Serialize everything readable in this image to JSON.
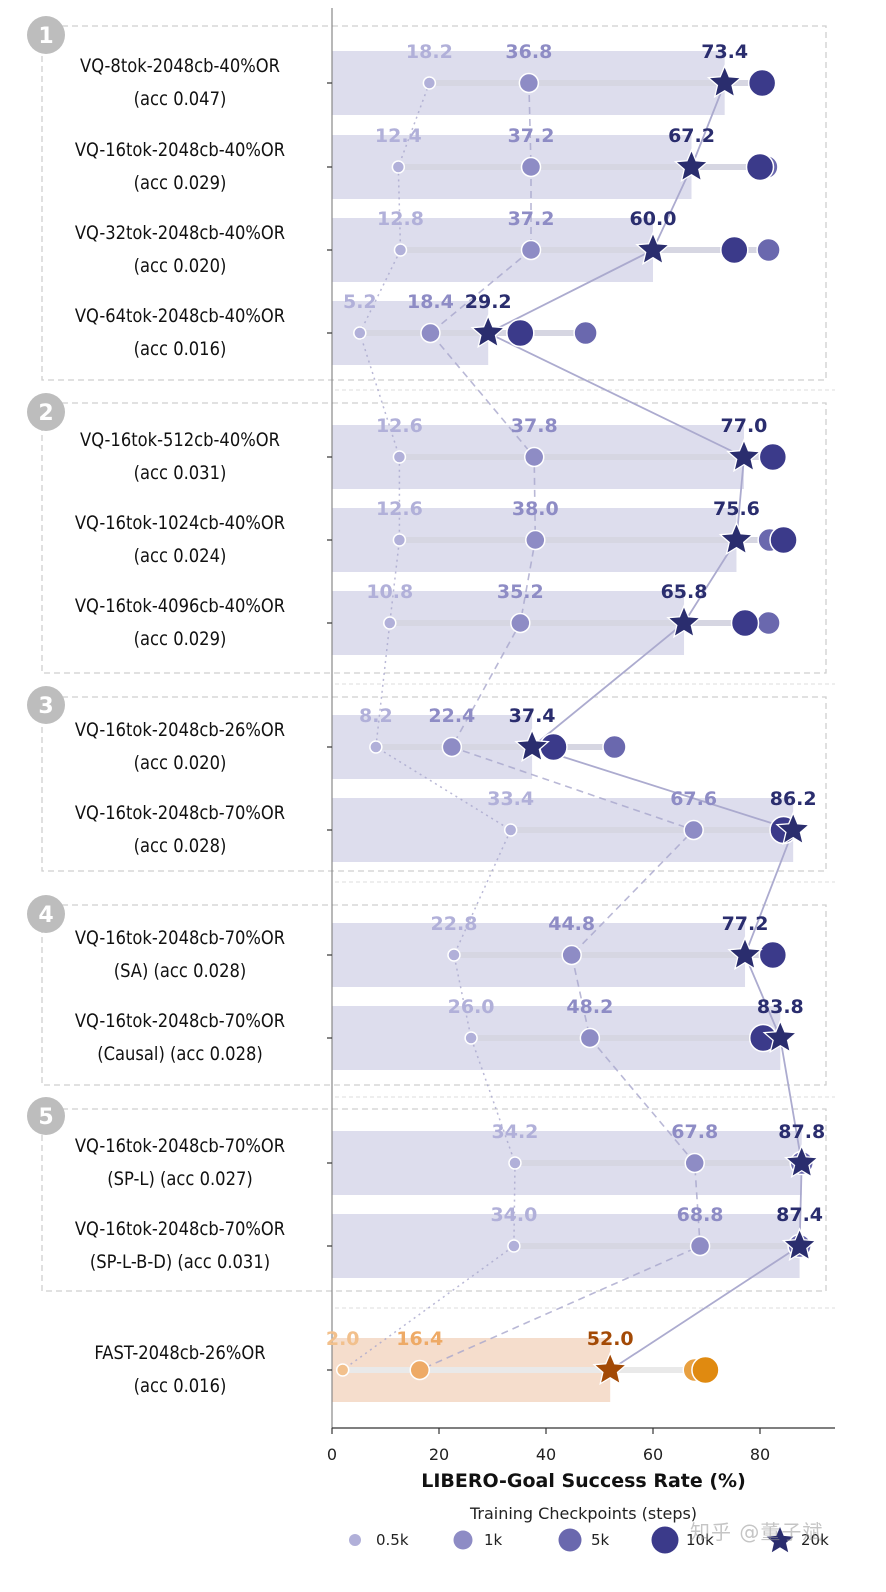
{
  "chart_data": {
    "type": "scatter",
    "xlabel": "LIBERO-Goal Success Rate (%)",
    "xlim": [
      0,
      95
    ],
    "xticks": [
      0,
      20,
      40,
      60,
      80
    ],
    "grid": false,
    "legend": {
      "title": "Training Checkpoints (steps)",
      "placement": "bottom",
      "entries": [
        "0.5k",
        "1k",
        "5k",
        "10k",
        "20k"
      ]
    },
    "colors": {
      "vq": [
        "#b1b0d9",
        "#8e8cc5",
        "#6a68ae",
        "#3b3a8a",
        "#2a2d6e"
      ],
      "fast": [
        "#f2c08c",
        "#eeaa66",
        "#e8a040",
        "#e08a10",
        "#a34a06"
      ],
      "vq_bar": "#dddded",
      "fast_bar": "#f5ddcc",
      "connector": "#a8a6cc"
    },
    "groups": [
      "1",
      "2",
      "3",
      "4",
      "5"
    ],
    "rows": [
      {
        "group": "1",
        "label": [
          "VQ-8tok-2048cb-40%OR",
          "(acc 0.047)"
        ],
        "s05k": 18.2,
        "s1k": 36.8,
        "s5k": null,
        "s10k": 80.4,
        "s20k": 73.4
      },
      {
        "group": "1",
        "label": [
          "VQ-16tok-2048cb-40%OR",
          "(acc 0.029)"
        ],
        "s05k": 12.4,
        "s1k": 37.2,
        "s5k": 81.2,
        "s10k": 80.0,
        "s20k": 67.2
      },
      {
        "group": "1",
        "label": [
          "VQ-32tok-2048cb-40%OR",
          "(acc 0.020)"
        ],
        "s05k": 12.8,
        "s1k": 37.2,
        "s5k": 81.6,
        "s10k": 75.2,
        "s20k": 60.0
      },
      {
        "group": "1",
        "label": [
          "VQ-64tok-2048cb-40%OR",
          "(acc 0.016)"
        ],
        "s05k": 5.2,
        "s1k": 18.4,
        "s5k": 47.4,
        "s10k": 35.2,
        "s20k": 29.2
      },
      {
        "group": "2",
        "label": [
          "VQ-16tok-512cb-40%OR",
          "(acc 0.031)"
        ],
        "s05k": 12.6,
        "s1k": 37.8,
        "s5k": null,
        "s10k": 82.4,
        "s20k": 77.0
      },
      {
        "group": "2",
        "label": [
          "VQ-16tok-1024cb-40%OR",
          "(acc 0.024)"
        ],
        "s05k": 12.6,
        "s1k": 38.0,
        "s5k": 81.8,
        "s10k": 84.4,
        "s20k": 75.6
      },
      {
        "group": "2",
        "label": [
          "VQ-16tok-4096cb-40%OR",
          "(acc 0.029)"
        ],
        "s05k": 10.8,
        "s1k": 35.2,
        "s5k": 81.6,
        "s10k": 77.2,
        "s20k": 65.8
      },
      {
        "group": "3",
        "label": [
          "VQ-16tok-2048cb-26%OR",
          "(acc 0.020)"
        ],
        "s05k": 8.2,
        "s1k": 22.4,
        "s5k": 52.8,
        "s10k": 41.4,
        "s20k": 37.4
      },
      {
        "group": "3",
        "label": [
          "VQ-16tok-2048cb-70%OR",
          "(acc 0.028)"
        ],
        "s05k": 33.4,
        "s1k": 67.6,
        "s5k": null,
        "s10k": 84.4,
        "s20k": 86.2
      },
      {
        "group": "4",
        "label": [
          "VQ-16tok-2048cb-70%OR",
          "(SA) (acc 0.028)"
        ],
        "s05k": 22.8,
        "s1k": 44.8,
        "s5k": null,
        "s10k": 82.4,
        "s20k": 77.2
      },
      {
        "group": "4",
        "label": [
          "VQ-16tok-2048cb-70%OR",
          "(Causal) (acc 0.028)"
        ],
        "s05k": 26.0,
        "s1k": 48.2,
        "s5k": null,
        "s10k": 80.6,
        "s20k": 83.8
      },
      {
        "group": "5",
        "label": [
          "VQ-16tok-2048cb-70%OR",
          "(SP-L) (acc 0.027)"
        ],
        "s05k": 34.2,
        "s1k": 67.8,
        "s5k": 87.8,
        "s10k": null,
        "s20k": 87.8
      },
      {
        "group": "5",
        "label": [
          "VQ-16tok-2048cb-70%OR",
          "(SP-L-B-D) (acc 0.031)"
        ],
        "s05k": 34.0,
        "s1k": 68.8,
        "s5k": 87.4,
        "s10k": null,
        "s20k": 87.4
      },
      {
        "group": "fast",
        "label": [
          "FAST-2048cb-26%OR",
          "(acc 0.016)"
        ],
        "s05k": 2.0,
        "s1k": 16.4,
        "s5k": 67.8,
        "s10k": 69.8,
        "s20k": 52.0
      }
    ]
  },
  "watermark": "知乎 @董子斌"
}
